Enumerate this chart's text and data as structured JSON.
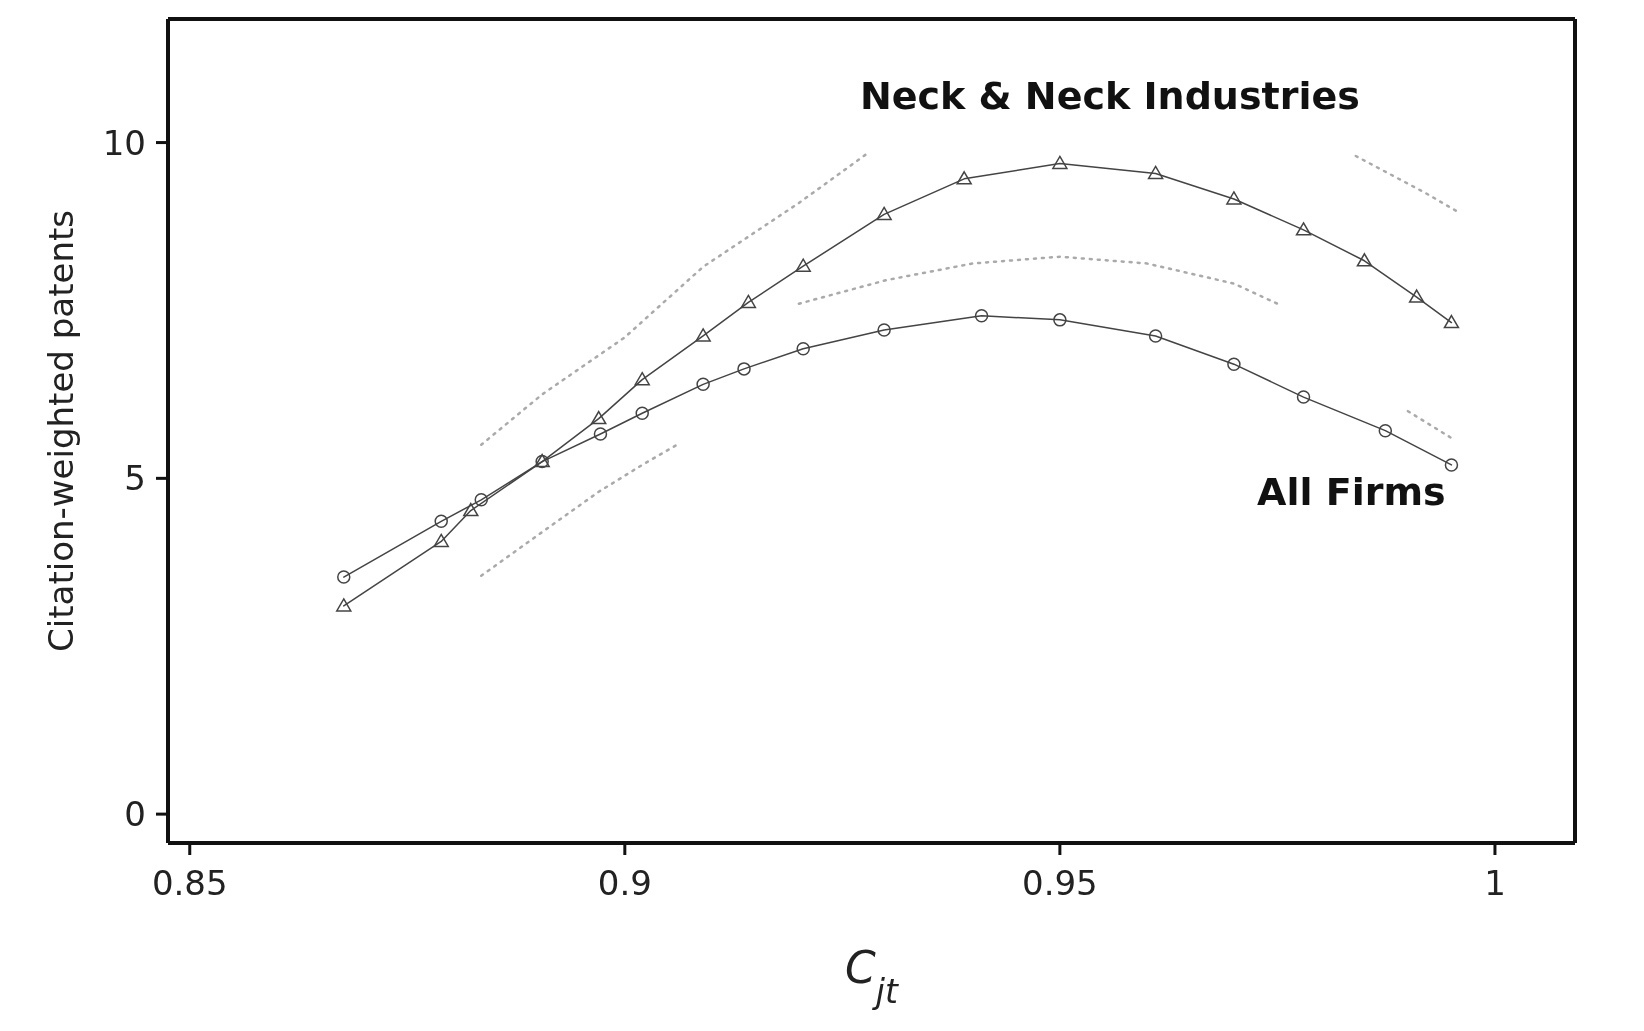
{
  "chart_data": {
    "type": "line",
    "xlabel": "C$_{jt}$",
    "ylabel": "Citation-weighted patents",
    "xlim": [
      0.8475,
      1.0092
    ],
    "ylim": [
      -0.43,
      11.84
    ],
    "xticks": [
      0.85,
      0.9,
      0.95,
      1
    ],
    "yticks": [
      0,
      5,
      10
    ],
    "series": [
      {
        "name": "Neck & Neck Industries",
        "color": "#444444",
        "marker": "triangle",
        "line_style": "solid",
        "x": [
          0.8677,
          0.8789,
          0.8823,
          0.8905,
          0.897,
          0.902,
          0.909,
          0.9142,
          0.9205,
          0.9298,
          0.939,
          0.95,
          0.961,
          0.97,
          0.978,
          0.985,
          0.991,
          0.995
        ],
        "values": [
          3.1,
          4.06,
          4.52,
          5.25,
          5.89,
          6.47,
          7.12,
          7.62,
          8.16,
          8.93,
          9.46,
          9.69,
          9.54,
          9.16,
          8.7,
          8.24,
          7.7,
          7.32
        ]
      },
      {
        "name": "All Firms",
        "color": "#444444",
        "marker": "circle",
        "line_style": "solid",
        "x": [
          0.8677,
          0.8789,
          0.8835,
          0.8905,
          0.8972,
          0.902,
          0.909,
          0.9137,
          0.9205,
          0.9298,
          0.941,
          0.95,
          0.961,
          0.97,
          0.978,
          0.9874,
          0.995
        ],
        "values": [
          3.53,
          4.36,
          4.68,
          5.25,
          5.66,
          5.97,
          6.4,
          6.63,
          6.93,
          7.21,
          7.42,
          7.36,
          7.12,
          6.7,
          6.21,
          5.71,
          5.2
        ]
      },
      {
        "color": "#aaaaaa",
        "marker": "none",
        "line_style": "dotted",
        "x": [
          0.8835,
          0.8905,
          0.9,
          0.909,
          0.92,
          0.928,
          0.95,
          0.984,
          0.992,
          0.996
        ],
        "values": [
          5.5,
          6.25,
          7.1,
          8.15,
          9.1,
          9.85,
          null,
          9.8,
          9.25,
          8.95
        ]
      },
      {
        "color": "#aaaaaa",
        "marker": "none",
        "line_style": "dotted",
        "x": [
          0.92,
          0.93,
          0.94,
          0.95,
          0.96,
          0.97,
          0.975
        ],
        "values": [
          7.6,
          7.95,
          8.2,
          8.3,
          8.2,
          7.9,
          7.6
        ]
      },
      {
        "color": "#aaaaaa",
        "marker": "none",
        "line_style": "dotted",
        "x": [
          0.8835,
          0.8905,
          0.897,
          0.902,
          0.906,
          0.95,
          0.99,
          0.995
        ],
        "values": [
          3.55,
          4.2,
          4.8,
          5.2,
          5.5,
          null,
          6.0,
          5.6
        ]
      }
    ]
  }
}
